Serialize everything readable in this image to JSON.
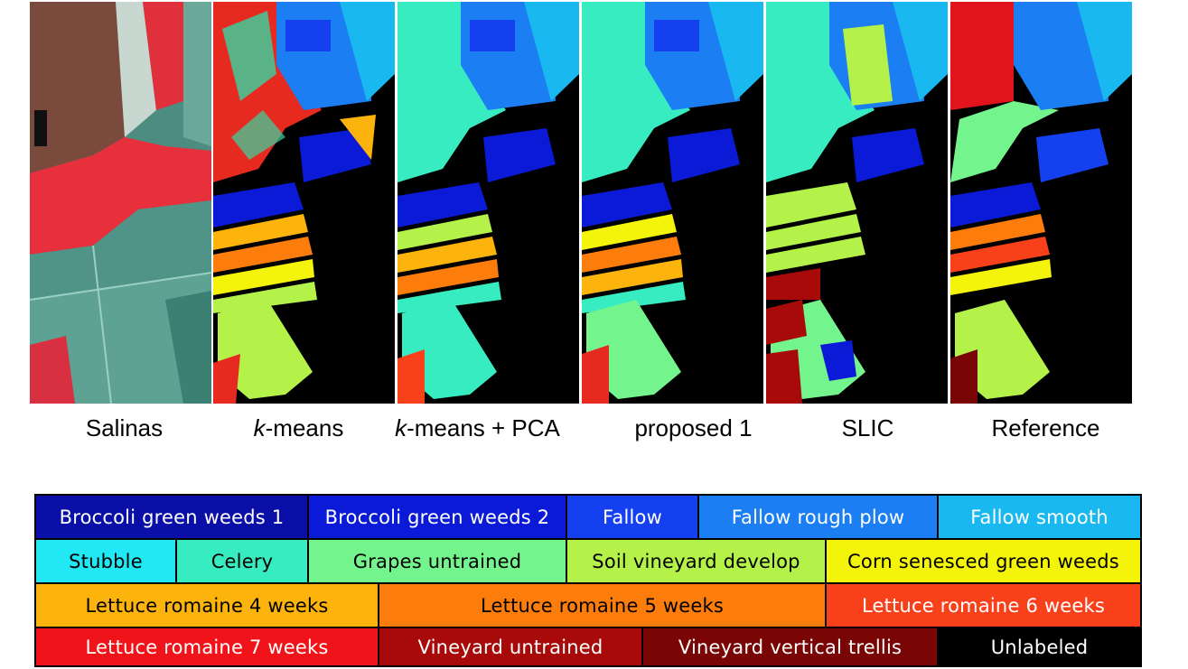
{
  "panels": [
    {
      "id": "salinas",
      "caption": "Salinas"
    },
    {
      "id": "kmeans",
      "caption_italic": "k",
      "caption_rest": "-means"
    },
    {
      "id": "kmeans-pca",
      "caption_italic": "k",
      "caption_rest": "-means + PCA"
    },
    {
      "id": "proposed1",
      "caption": "proposed 1"
    },
    {
      "id": "slic",
      "caption": "SLIC"
    },
    {
      "id": "reference",
      "caption": "Reference"
    }
  ],
  "legend": {
    "rows": [
      [
        {
          "label": "Broccoli green weeds 1",
          "color": "#0a0fa8",
          "text_color": "#ffffff"
        },
        {
          "label": "Broccoli green weeds 2",
          "color": "#0b1ad6",
          "text_color": "#ffffff"
        },
        {
          "label": "Fallow",
          "color": "#1440f0",
          "text_color": "#ffffff"
        },
        {
          "label": "Fallow rough plow",
          "color": "#1b7ef2",
          "text_color": "#ffffff"
        },
        {
          "label": "Fallow smooth",
          "color": "#19b8f0",
          "text_color": "#ffffff"
        }
      ],
      [
        {
          "label": "Stubble",
          "color": "#22e8f4",
          "text_color": "#000000"
        },
        {
          "label": "Celery",
          "color": "#36ecc0",
          "text_color": "#000000"
        },
        {
          "label": "Grapes untrained",
          "color": "#74f48c",
          "text_color": "#000000"
        },
        {
          "label": "Soil vineyard develop",
          "color": "#b4f24a",
          "text_color": "#000000"
        },
        {
          "label": "Corn senesced green weeds",
          "color": "#f4f40a",
          "text_color": "#000000"
        }
      ],
      [
        {
          "label": "Lettuce romaine 4 weeks",
          "color": "#fcb40c",
          "text_color": "#000000"
        },
        {
          "label": "Lettuce romaine 5 weeks",
          "color": "#fc7c0c",
          "text_color": "#000000"
        },
        {
          "label": "Lettuce romaine 6 weeks",
          "color": "#f8401a",
          "text_color": "#ffffff"
        }
      ],
      [
        {
          "label": "Lettuce romaine 7 weeks",
          "color": "#f0141a",
          "text_color": "#ffffff"
        },
        {
          "label": "Vineyard untrained",
          "color": "#a80a0a",
          "text_color": "#ffffff"
        },
        {
          "label": "Vineyard vertical trellis",
          "color": "#7a0505",
          "text_color": "#ffffff"
        },
        {
          "label": "Unlabeled",
          "color": "#000000",
          "text_color": "#ffffff"
        }
      ]
    ]
  }
}
